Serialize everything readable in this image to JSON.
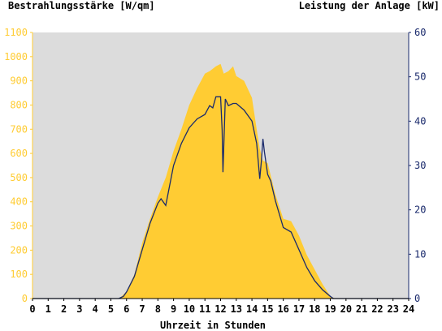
{
  "chart_data": {
    "type": "area",
    "left_axis": {
      "label": "Bestrahlungsstärke [W/qm]",
      "ylim": [
        0,
        1100
      ],
      "ticks": [
        0,
        100,
        200,
        300,
        400,
        500,
        600,
        700,
        800,
        900,
        1000,
        1100
      ],
      "color": "#ffcc33"
    },
    "right_axis": {
      "label": "Leistung der Anlage [kW]",
      "ylim": [
        0,
        60
      ],
      "ticks": [
        0,
        10,
        20,
        30,
        40,
        50,
        60
      ],
      "color": "#1a2a6c"
    },
    "x_axis": {
      "label": "Uhrzeit in Stunden",
      "xlim": [
        0,
        24
      ],
      "ticks": [
        0,
        1,
        2,
        3,
        4,
        5,
        6,
        7,
        8,
        9,
        10,
        11,
        12,
        13,
        14,
        15,
        16,
        17,
        18,
        19,
        20,
        21,
        22,
        23,
        24
      ]
    },
    "plot_background": "#dcdcdc",
    "series": [
      {
        "axis": "left",
        "style": "area",
        "color": "#ffcc33",
        "x": [
          0,
          5.5,
          5.7,
          6.0,
          6.5,
          7.0,
          7.5,
          8.0,
          8.5,
          9.0,
          9.5,
          10.0,
          10.5,
          11.0,
          11.3,
          11.5,
          11.7,
          12.0,
          12.2,
          12.5,
          12.8,
          13.0,
          13.5,
          14.0,
          14.3,
          14.5,
          14.7,
          15.0,
          15.5,
          16.0,
          16.5,
          17.0,
          17.5,
          18.0,
          18.5,
          19.0,
          19.3,
          24
        ],
        "values": [
          0,
          0,
          10,
          30,
          100,
          230,
          330,
          420,
          500,
          610,
          700,
          800,
          870,
          930,
          940,
          950,
          960,
          970,
          930,
          940,
          960,
          920,
          900,
          830,
          700,
          620,
          570,
          560,
          430,
          330,
          320,
          260,
          180,
          120,
          60,
          10,
          0,
          0
        ]
      },
      {
        "axis": "right",
        "style": "line",
        "color": "#1a2a6c",
        "x": [
          0,
          5.5,
          5.8,
          6.0,
          6.5,
          7.0,
          7.5,
          8.0,
          8.2,
          8.5,
          9.0,
          9.5,
          10.0,
          10.5,
          11.0,
          11.3,
          11.5,
          11.7,
          12.0,
          12.1,
          12.15,
          12.3,
          12.5,
          12.8,
          13.0,
          13.5,
          14.0,
          14.3,
          14.5,
          14.6,
          14.7,
          14.8,
          15.0,
          15.2,
          15.5,
          16.0,
          16.5,
          17.0,
          17.5,
          18.0,
          18.5,
          19.0,
          19.2,
          24
        ],
        "values": [
          0,
          0,
          0.5,
          1.5,
          5,
          11,
          17,
          21.5,
          22.5,
          21,
          30,
          35,
          38.5,
          40.5,
          41.5,
          43.5,
          43,
          45.5,
          45.5,
          38,
          28.5,
          45,
          43.5,
          44,
          44,
          42.5,
          40,
          35,
          27,
          31,
          36,
          33,
          28,
          26.5,
          22,
          16,
          15,
          11,
          7,
          4,
          2,
          0.5,
          0,
          0
        ]
      }
    ]
  }
}
